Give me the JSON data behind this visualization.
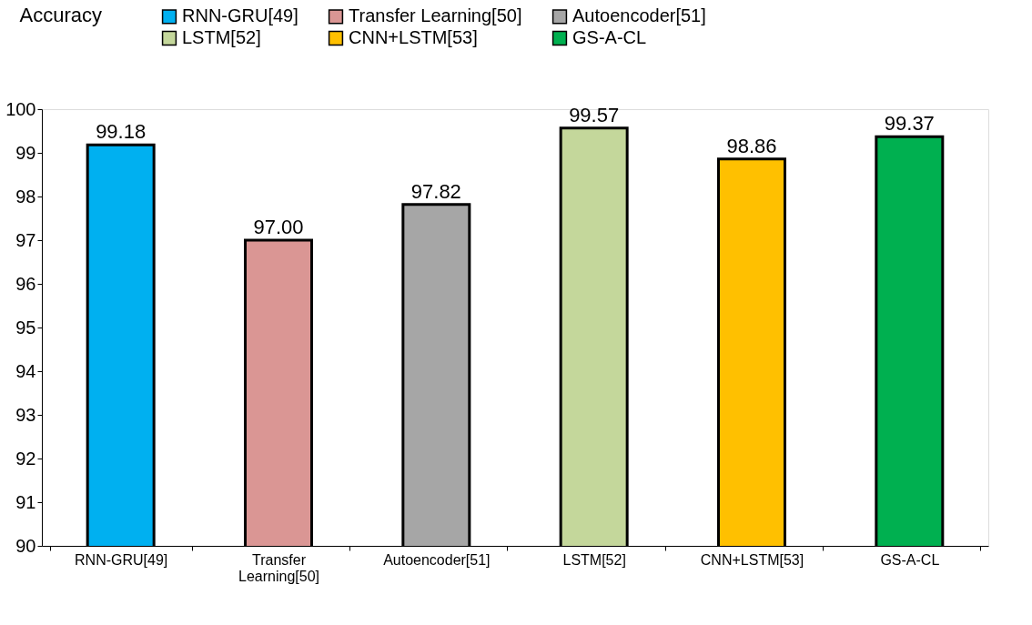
{
  "chart_data": {
    "type": "bar",
    "ylabel": "Accuracy",
    "categories": [
      "RNN-GRU[49]",
      "Transfer Learning[50]",
      "Autoencoder[51]",
      "LSTM[52]",
      "CNN+LSTM[53]",
      "GS-A-CL"
    ],
    "series": [
      {
        "name": "RNN-GRU[49]",
        "color": "#00b0f0",
        "values": [
          99.18,
          null,
          null,
          null,
          null,
          null
        ],
        "value_labels": [
          "99.18",
          null,
          null,
          null,
          null,
          null
        ]
      },
      {
        "name": "Transfer Learning[50]",
        "color": "#da9694",
        "values": [
          null,
          97.0,
          null,
          null,
          null,
          null
        ],
        "value_labels": [
          null,
          "97.00",
          null,
          null,
          null,
          null
        ]
      },
      {
        "name": "Autoencoder[51]",
        "color": "#a6a6a6",
        "values": [
          null,
          null,
          97.82,
          null,
          null,
          null
        ],
        "value_labels": [
          null,
          null,
          "97.82",
          null,
          null,
          null
        ]
      },
      {
        "name": "LSTM[52]",
        "color": "#c4d79b",
        "values": [
          null,
          null,
          null,
          99.57,
          null,
          null
        ],
        "value_labels": [
          null,
          null,
          null,
          "99.57",
          null,
          null
        ]
      },
      {
        "name": "CNN+LSTM[53]",
        "color": "#ffc000",
        "values": [
          null,
          null,
          null,
          null,
          98.86,
          null
        ],
        "value_labels": [
          null,
          null,
          null,
          null,
          "98.86",
          null
        ]
      },
      {
        "name": "GS-A-CL",
        "color": "#00b050",
        "values": [
          null,
          null,
          null,
          null,
          null,
          99.37
        ],
        "value_labels": [
          null,
          null,
          null,
          null,
          null,
          "99.37"
        ]
      }
    ],
    "stacked": true,
    "ylim": [
      90,
      100
    ],
    "yticks": [
      90,
      91,
      92,
      93,
      94,
      95,
      96,
      97,
      98,
      99,
      100
    ],
    "legend": "top",
    "grid": false
  }
}
